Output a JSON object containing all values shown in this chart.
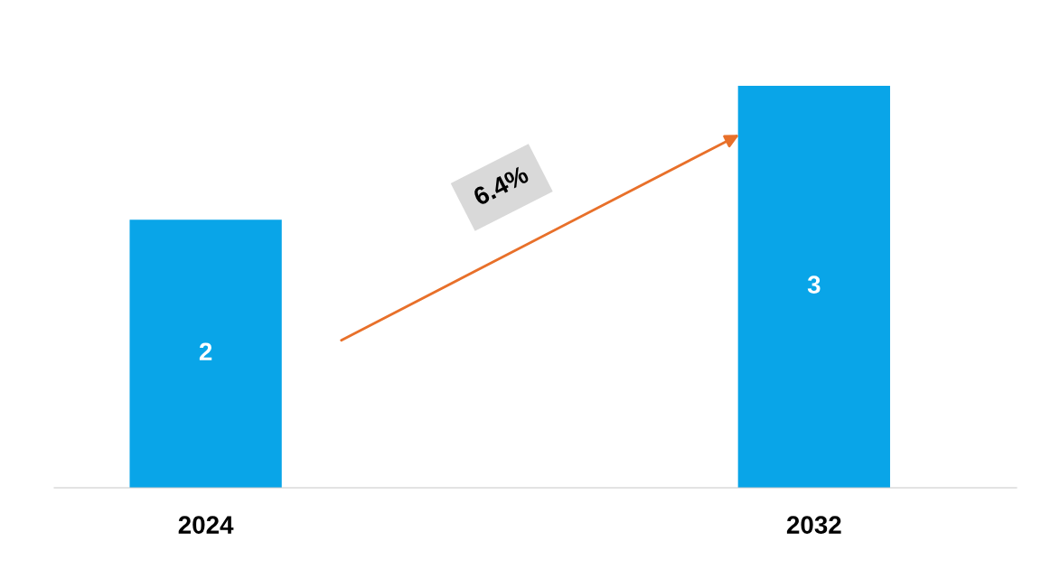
{
  "chart_data": {
    "type": "bar",
    "categories": [
      "2024",
      "2032"
    ],
    "values": [
      2,
      3
    ],
    "color": "#09a5e8",
    "data_labels": true,
    "grid": false,
    "legend": false,
    "tick_labels": "x",
    "annotations": [
      "6.4%"
    ]
  }
}
